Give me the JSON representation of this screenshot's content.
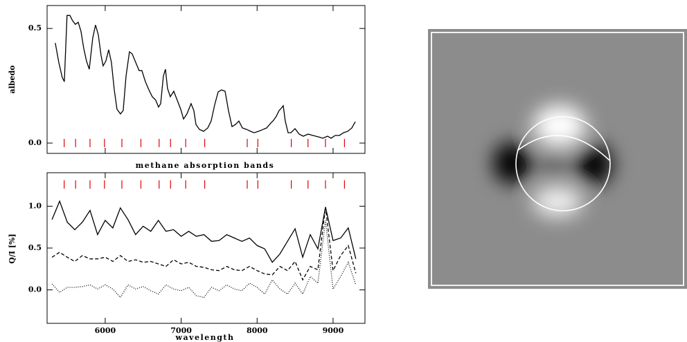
{
  "chart_data": [
    {
      "type": "line",
      "ylabel": "albedo",
      "xlim": [
        5235,
        9420
      ],
      "ylim": [
        -0.045,
        0.6
      ],
      "xticks": [
        6000,
        7000,
        8000,
        9000
      ],
      "yticks": [
        {
          "value": 0,
          "label": "0.0"
        },
        {
          "value": 0.5,
          "label": "0.5"
        }
      ],
      "bands": {
        "label": "methane absorption bands",
        "color": "#e00000",
        "x": [
          5460,
          5610,
          5800,
          5990,
          6220,
          6470,
          6710,
          6860,
          7060,
          7310,
          7870,
          8010,
          8450,
          8670,
          8900,
          9150
        ]
      },
      "x": [
        5343,
        5389,
        5435,
        5462,
        5498,
        5535,
        5571,
        5608,
        5644,
        5681,
        5717,
        5754,
        5790,
        5836,
        5872,
        5909,
        5945,
        5973,
        6009,
        6046,
        6082,
        6119,
        6155,
        6201,
        6237,
        6274,
        6319,
        6356,
        6401,
        6447,
        6483,
        6529,
        6575,
        6620,
        6666,
        6702,
        6730,
        6766,
        6793,
        6821,
        6857,
        6903,
        6948,
        6994,
        7031,
        7076,
        7131,
        7167,
        7195,
        7240,
        7295,
        7350,
        7395,
        7441,
        7487,
        7532,
        7578,
        7623,
        7669,
        7715,
        7760,
        7806,
        7860,
        7915,
        7961,
        8016,
        8061,
        8125,
        8180,
        8216,
        8253,
        8289,
        8316,
        8344,
        8371,
        8408,
        8444,
        8499,
        8554,
        8608,
        8672,
        8736,
        8809,
        8864,
        8928,
        8973,
        9028,
        9083,
        9137,
        9192,
        9247,
        9292
      ],
      "series": [
        {
          "color": "#000000",
          "style": "solid",
          "values": [
            0.437,
            0.352,
            0.286,
            0.268,
            0.557,
            0.557,
            0.533,
            0.518,
            0.527,
            0.488,
            0.413,
            0.358,
            0.322,
            0.458,
            0.515,
            0.473,
            0.383,
            0.337,
            0.358,
            0.407,
            0.352,
            0.232,
            0.148,
            0.127,
            0.142,
            0.292,
            0.398,
            0.389,
            0.352,
            0.316,
            0.316,
            0.268,
            0.232,
            0.202,
            0.187,
            0.157,
            0.172,
            0.292,
            0.322,
            0.238,
            0.202,
            0.226,
            0.187,
            0.148,
            0.105,
            0.127,
            0.172,
            0.142,
            0.081,
            0.06,
            0.051,
            0.066,
            0.096,
            0.166,
            0.223,
            0.232,
            0.226,
            0.142,
            0.072,
            0.081,
            0.096,
            0.066,
            0.06,
            0.051,
            0.045,
            0.051,
            0.057,
            0.066,
            0.087,
            0.099,
            0.117,
            0.142,
            0.151,
            0.163,
            0.096,
            0.045,
            0.045,
            0.063,
            0.039,
            0.03,
            0.039,
            0.033,
            0.027,
            0.021,
            0.03,
            0.021,
            0.033,
            0.033,
            0.045,
            0.051,
            0.066,
            0.093
          ]
        }
      ]
    },
    {
      "type": "line",
      "ylabel": "Q/I [%]",
      "xlabel": "wavelength",
      "xlim": [
        5235,
        9420
      ],
      "ylim": [
        -0.4,
        1.4
      ],
      "xticks": [
        6000,
        7000,
        8000,
        9000
      ],
      "yticks": [
        {
          "value": 0,
          "label": "0.0"
        },
        {
          "value": 0.5,
          "label": "0.5"
        },
        {
          "value": 1,
          "label": "1.0"
        }
      ],
      "x": [
        5300,
        5400,
        5500,
        5600,
        5700,
        5800,
        5900,
        6000,
        6100,
        6200,
        6300,
        6400,
        6500,
        6600,
        6700,
        6800,
        6900,
        7000,
        7100,
        7200,
        7300,
        7400,
        7500,
        7600,
        7700,
        7800,
        7900,
        8000,
        8100,
        8200,
        8300,
        8400,
        8500,
        8600,
        8700,
        8800,
        8900,
        9000,
        9100,
        9200,
        9300
      ],
      "series": [
        {
          "color": "#000000",
          "style": "solid",
          "values": [
            0.84,
            1.06,
            0.81,
            0.72,
            0.81,
            0.95,
            0.66,
            0.83,
            0.74,
            0.98,
            0.84,
            0.66,
            0.76,
            0.7,
            0.83,
            0.7,
            0.72,
            0.64,
            0.7,
            0.64,
            0.66,
            0.58,
            0.59,
            0.66,
            0.62,
            0.58,
            0.62,
            0.53,
            0.49,
            0.33,
            0.43,
            0.58,
            0.73,
            0.39,
            0.66,
            0.49,
            0.99,
            0.59,
            0.62,
            0.74,
            0.37
          ]
        },
        {
          "color": "#000000",
          "style": "dashed",
          "values": [
            0.39,
            0.45,
            0.39,
            0.34,
            0.41,
            0.37,
            0.37,
            0.39,
            0.34,
            0.41,
            0.34,
            0.36,
            0.33,
            0.34,
            0.31,
            0.28,
            0.36,
            0.31,
            0.33,
            0.28,
            0.27,
            0.24,
            0.23,
            0.28,
            0.24,
            0.23,
            0.28,
            0.23,
            0.19,
            0.18,
            0.28,
            0.23,
            0.34,
            0.12,
            0.28,
            0.24,
            0.99,
            0.23,
            0.41,
            0.53,
            0.2
          ]
        },
        {
          "color": "#000000",
          "style": "dotted",
          "values": [
            0.07,
            -0.03,
            0.03,
            0.03,
            0.04,
            0.06,
            0.01,
            0.06,
            0.01,
            -0.09,
            0.06,
            0.01,
            0.04,
            -0.01,
            -0.05,
            0.06,
            0.01,
            -0.01,
            0.03,
            -0.07,
            -0.09,
            0.03,
            -0.01,
            0.06,
            0.01,
            -0.01,
            0.08,
            0.03,
            -0.05,
            0.12,
            0.01,
            -0.05,
            0.08,
            -0.05,
            0.16,
            0.08,
            0.83,
            0.01,
            0.16,
            0.33,
            0.06
          ]
        }
      ]
    }
  ]
}
